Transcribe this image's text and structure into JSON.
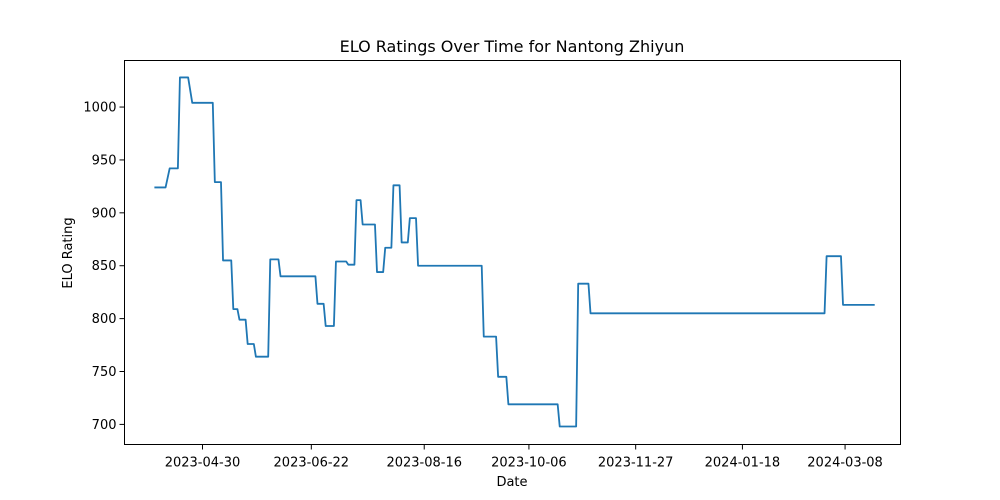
{
  "chart_data": {
    "type": "line",
    "title": "ELO Ratings Over Time for Nantong Zhiyun",
    "xlabel": "Date",
    "ylabel": "ELO Rating",
    "x_ticks": [
      "2023-04-30",
      "2023-06-22",
      "2023-08-16",
      "2023-10-06",
      "2023-11-27",
      "2024-01-18",
      "2024-03-08"
    ],
    "y_ticks": [
      700,
      750,
      800,
      850,
      900,
      950,
      1000
    ],
    "ylim": [
      681,
      1044
    ],
    "xlim": [
      "2023-03-23",
      "2024-04-04"
    ],
    "grid": false,
    "colors": {
      "series": "#1f77b4",
      "axes": "#000000",
      "background": "#ffffff"
    },
    "series": [
      {
        "x": [
          "2023-04-07",
          "2023-04-12",
          "2023-04-14",
          "2023-04-18",
          "2023-04-19",
          "2023-04-23",
          "2023-04-25",
          "2023-05-05",
          "2023-05-06",
          "2023-05-09",
          "2023-05-10",
          "2023-05-14",
          "2023-05-15",
          "2023-05-17",
          "2023-05-18",
          "2023-05-21",
          "2023-05-22",
          "2023-05-25",
          "2023-05-26",
          "2023-06-01",
          "2023-06-02",
          "2023-06-06",
          "2023-06-07",
          "2023-06-24",
          "2023-06-25",
          "2023-06-28",
          "2023-06-29",
          "2023-07-03",
          "2023-07-04",
          "2023-07-09",
          "2023-07-10",
          "2023-07-13",
          "2023-07-14",
          "2023-07-16",
          "2023-07-17",
          "2023-07-23",
          "2023-07-24",
          "2023-07-27",
          "2023-07-28",
          "2023-07-31",
          "2023-08-01",
          "2023-08-04",
          "2023-08-05",
          "2023-08-08",
          "2023-08-09",
          "2023-08-12",
          "2023-08-13",
          "2023-08-23",
          "2023-08-24",
          "2023-09-13",
          "2023-09-14",
          "2023-09-20",
          "2023-09-21",
          "2023-09-25",
          "2023-09-26",
          "2023-10-20",
          "2023-10-21",
          "2023-10-29",
          "2023-10-30",
          "2023-11-04",
          "2023-11-05",
          "2024-02-27",
          "2024-02-28",
          "2024-03-06",
          "2024-03-07",
          "2024-03-22"
        ],
        "values": [
          924,
          924,
          942,
          942,
          1028,
          1028,
          1004,
          1004,
          929,
          929,
          855,
          855,
          809,
          809,
          799,
          799,
          776,
          776,
          764,
          764,
          856,
          856,
          840,
          840,
          814,
          814,
          793,
          793,
          854,
          854,
          851,
          851,
          912,
          912,
          889,
          889,
          844,
          844,
          867,
          867,
          926,
          926,
          872,
          872,
          895,
          895,
          850,
          850,
          850,
          850,
          783,
          783,
          745,
          745,
          719,
          719,
          698,
          698,
          833,
          833,
          805,
          805,
          859,
          859,
          813,
          813
        ]
      }
    ]
  }
}
